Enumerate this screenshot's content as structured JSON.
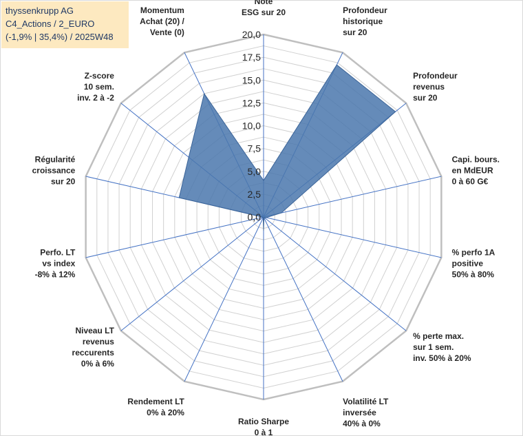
{
  "info": {
    "line1": "thyssenkrupp AG",
    "line2": "C4_Actions / 2_EURO",
    "line3": "(-1,9% | 35,4%) / 2025W48"
  },
  "colors": {
    "fill": "#4a77ad",
    "stroke": "#3b6498",
    "grid": "#d0d0d0",
    "outer": "#bfbfbf",
    "axis": "#4472c4"
  },
  "chart_data": {
    "type": "radar",
    "title": "thyssenkrupp AG",
    "rmin": 0,
    "rmax": 20,
    "tick_labels": [
      "0,0",
      "2,5",
      "5,0",
      "7,5",
      "10,0",
      "12,5",
      "15,0",
      "17,5",
      "20,0"
    ],
    "categories": [
      [
        "Note",
        "ESG sur 20"
      ],
      [
        "Profondeur",
        "historique",
        "sur 20"
      ],
      [
        "Profondeur",
        "revenus",
        "sur 20"
      ],
      [
        "Capi. bours.",
        "en MdEUR",
        "0 à 60 G€"
      ],
      [
        "% perfo 1A",
        "positive",
        "50% à 80%"
      ],
      [
        "% perte max.",
        "sur 1 sem.",
        "inv. 50% à 20%"
      ],
      [
        "Volatilité LT",
        "inversée",
        "40% à 0%"
      ],
      [
        "Ratio Sharpe",
        "0 à 1"
      ],
      [
        "Rendement LT",
        "0% à 20%"
      ],
      [
        "Niveau LT",
        "revenus",
        "reccurents",
        "0% à 6%"
      ],
      [
        "Perfo. LT",
        "vs index",
        "-8% à 12%"
      ],
      [
        "Régularité",
        "croissance",
        "sur 20"
      ],
      [
        "Z-score",
        "10 sem.",
        "inv. 2 à -2"
      ],
      [
        "Momentum",
        "Achat (20) /",
        "Vente (0)"
      ]
    ],
    "series": [
      {
        "name": "thyssenkrupp AG",
        "values": [
          4.0,
          18.5,
          18.5,
          2.0,
          0.3,
          0.2,
          0.1,
          1.5,
          0.1,
          0.1,
          0.1,
          9.5,
          10.5,
          15.0
        ]
      }
    ]
  }
}
